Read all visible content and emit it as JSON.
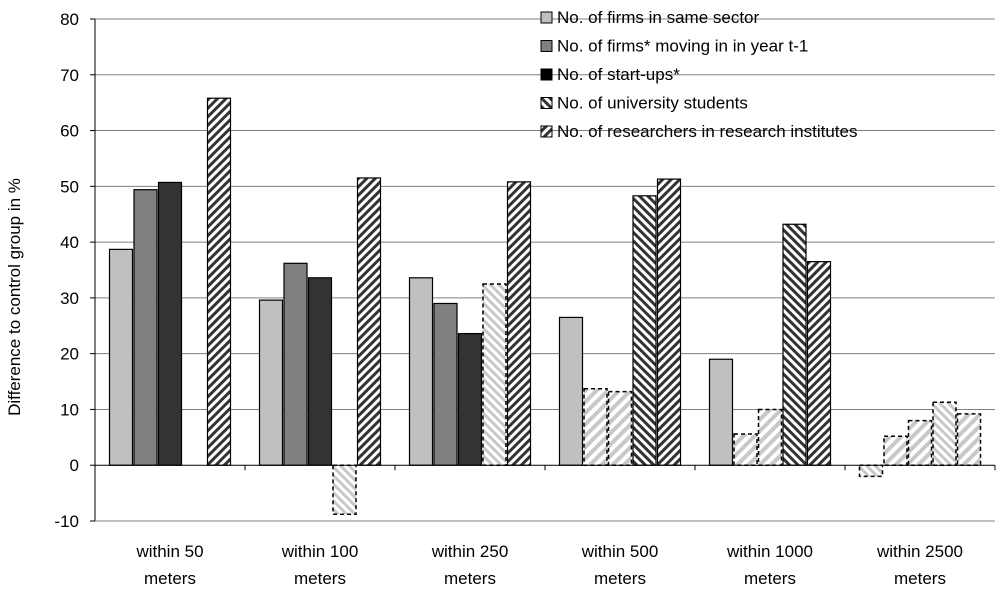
{
  "chart_data": {
    "type": "bar",
    "title": "",
    "xlabel": "",
    "ylabel": "Difference to control group in %",
    "ylim": [
      -10,
      80
    ],
    "yticks": [
      -10,
      0,
      10,
      20,
      30,
      40,
      50,
      60,
      70,
      80
    ],
    "grid": "horizontal",
    "legend_position": "top-right",
    "categories": [
      [
        "within 50",
        "meters"
      ],
      [
        "within 100",
        "meters"
      ],
      [
        "within 250",
        "meters"
      ],
      [
        "within 500",
        "meters"
      ],
      [
        "within 1000",
        "meters"
      ],
      [
        "within 2500",
        "meters"
      ]
    ],
    "series": [
      {
        "name": "No. of firms in same sector",
        "values": [
          38.7,
          29.6,
          33.6,
          26.5,
          19.0,
          -2.0
        ],
        "significant": [
          true,
          true,
          true,
          true,
          true,
          false
        ]
      },
      {
        "name": "No. of firms* moving in in year t-1",
        "values": [
          49.4,
          36.2,
          29.0,
          13.7,
          5.6,
          5.2
        ],
        "significant": [
          true,
          true,
          true,
          false,
          false,
          false
        ]
      },
      {
        "name": "No. of start-ups*",
        "values": [
          50.7,
          33.6,
          23.6,
          13.2,
          10.0,
          8.0
        ],
        "significant": [
          true,
          true,
          true,
          false,
          false,
          false
        ]
      },
      {
        "name": "No. of university students",
        "values": [
          0.0,
          -8.8,
          32.5,
          48.3,
          43.2,
          11.3
        ],
        "significant": [
          true,
          false,
          false,
          true,
          true,
          false
        ]
      },
      {
        "name": "No. of researchers in research institutes",
        "values": [
          65.8,
          51.5,
          50.8,
          51.3,
          36.5,
          9.2
        ],
        "significant": [
          true,
          true,
          true,
          true,
          true,
          false
        ]
      }
    ],
    "colors": {
      "series_fill": [
        "#c0c0c0",
        "#808080",
        "#333333",
        "#ffffff",
        "#ffffff"
      ],
      "stripe_dark": "#333333",
      "stripe_light": "#c0c0c0",
      "grid": "#808080",
      "axis": "#000000"
    }
  }
}
